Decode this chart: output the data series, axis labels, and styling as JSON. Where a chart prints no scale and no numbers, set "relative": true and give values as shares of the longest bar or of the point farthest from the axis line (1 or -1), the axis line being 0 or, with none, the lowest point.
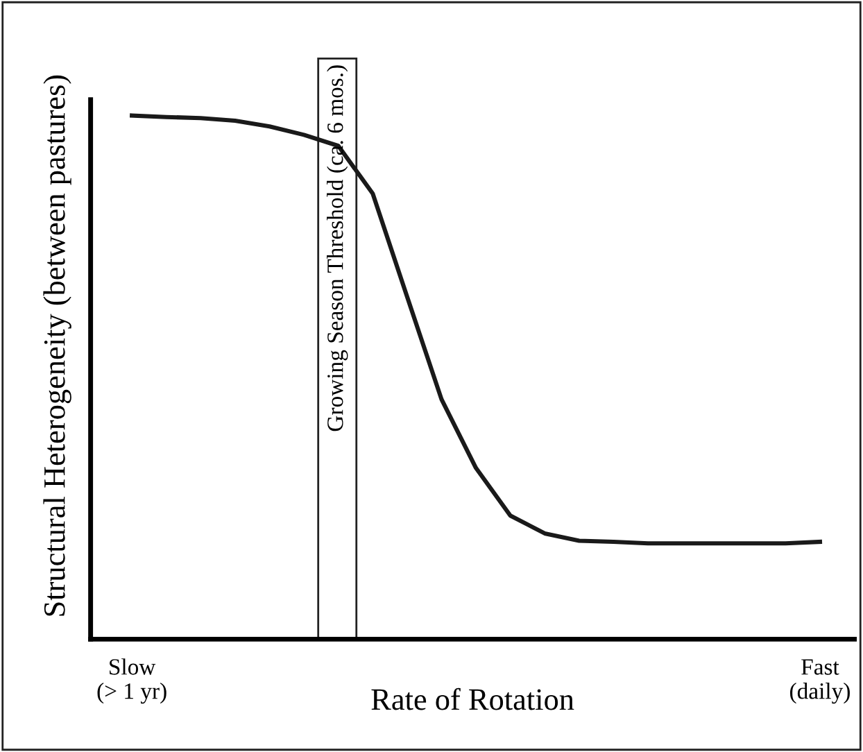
{
  "chart_data": {
    "type": "line",
    "relative": true,
    "xlabel": "Rate of Rotation",
    "ylabel": "Structural Heterogeneity (between pastures)",
    "categories": [
      "Slow\n(> 1 yr)",
      null,
      null,
      null,
      null,
      null,
      null,
      null,
      null,
      null,
      null,
      null,
      null,
      null,
      null,
      null,
      null,
      null,
      null,
      null,
      "Fast\n(daily)"
    ],
    "series": [
      {
        "color": "#1a1a1a",
        "values": [
          1.0,
          0.997,
          0.995,
          0.99,
          0.979,
          0.963,
          0.942,
          0.851,
          0.654,
          0.458,
          0.327,
          0.236,
          0.202,
          0.188,
          0.186,
          0.183,
          0.183,
          0.183,
          0.183,
          0.183,
          0.186
        ]
      }
    ],
    "annotations": [
      "Growing Season Threshold (ca. 6 mos.)"
    ],
    "grid": false,
    "marker": "none",
    "line_style": "solid"
  }
}
